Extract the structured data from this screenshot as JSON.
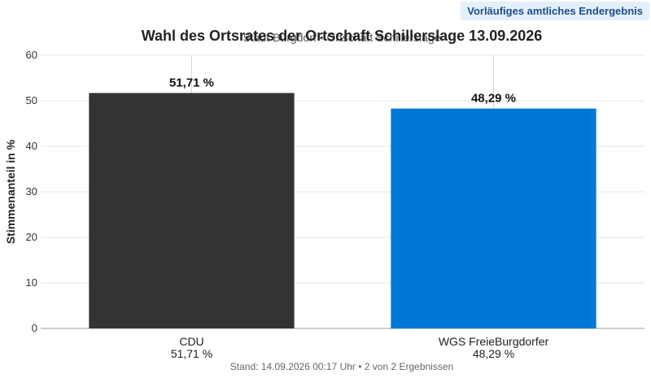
{
  "badge": "Vorläufiges amtliches Endergebnis",
  "footer": "Stand: 14.09.2026 00:17 Uhr • 2 von 2 Ergebnissen",
  "chart_data": {
    "type": "bar",
    "title": "Wahl des Ortsrates der Ortschaft Schillerslage 13.09.2026",
    "subtitle": "Stadt Burgdorf • Ortschaft Schillerslage",
    "ylabel": "Stimmenanteil in %",
    "xlabel": "",
    "ylim": [
      0,
      60
    ],
    "yticks": [
      0,
      10,
      20,
      30,
      40,
      50,
      60
    ],
    "grid": true,
    "legend": "none",
    "categories": [
      "CDU",
      "WGS FreieBurgdorfer"
    ],
    "values": [
      51.71,
      48.29
    ],
    "value_labels": [
      "51,71 %",
      "48,29 %"
    ],
    "colors": [
      "#333333",
      "#0078d7"
    ]
  }
}
